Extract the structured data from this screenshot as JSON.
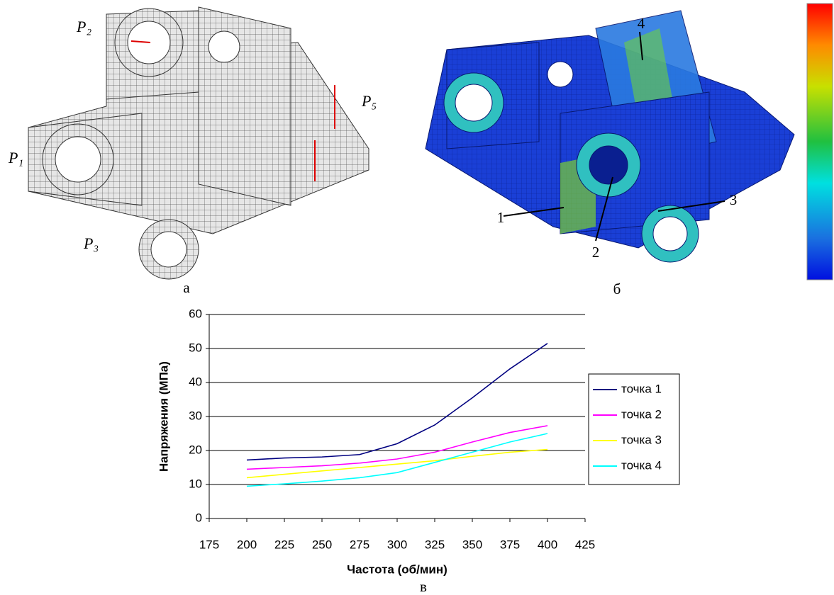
{
  "figure": {
    "panel_a": {
      "caption": "а",
      "loads": [
        "P₂",
        "P₅",
        "P₁",
        "P₃"
      ]
    },
    "panel_b": {
      "caption": "б",
      "points": [
        "4",
        "1",
        "3",
        "2"
      ]
    },
    "panel_c": {
      "caption": "в"
    }
  },
  "chart_data": {
    "type": "line",
    "x": [
      200,
      225,
      250,
      275,
      300,
      325,
      350,
      375,
      400
    ],
    "series": [
      {
        "name": "точка 1",
        "color": "#000080",
        "values": [
          17.2,
          17.8,
          18.1,
          18.8,
          22,
          27.5,
          35.5,
          44,
          51.5
        ]
      },
      {
        "name": "точка 2",
        "color": "#ff00ff",
        "values": [
          14.5,
          15,
          15.5,
          16.3,
          17.5,
          19.5,
          22.5,
          25.3,
          27.3
        ]
      },
      {
        "name": "точка 3",
        "color": "#ffff00",
        "values": [
          12,
          13,
          14,
          15,
          16,
          17,
          18.3,
          19.5,
          20.3
        ]
      },
      {
        "name": "точка 4",
        "color": "#00ffff",
        "values": [
          9.5,
          10.2,
          11,
          12,
          13.5,
          16.5,
          19.5,
          22.5,
          25
        ]
      }
    ],
    "xlabel": "Частота (об/мин)",
    "ylabel": "Напряжения (МПа)",
    "xlim": [
      175,
      425
    ],
    "xticks": [
      175,
      200,
      225,
      250,
      275,
      300,
      325,
      350,
      375,
      400,
      425
    ],
    "ylim": [
      0,
      60
    ],
    "yticks": [
      0,
      10,
      20,
      30,
      40,
      50,
      60
    ],
    "grid": true,
    "legend": "right"
  }
}
